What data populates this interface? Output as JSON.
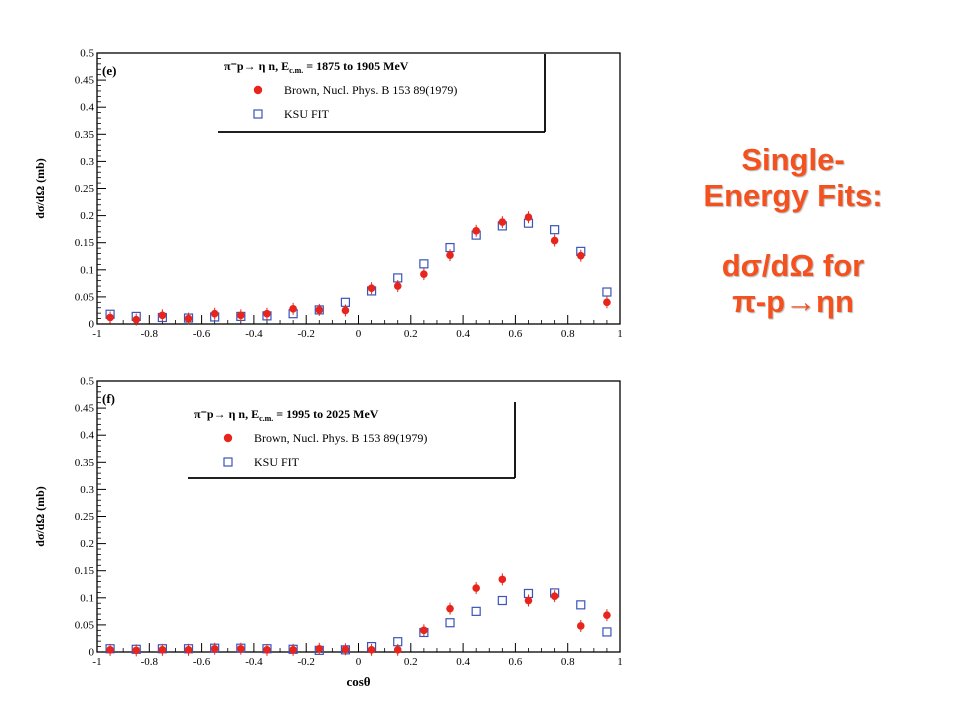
{
  "side_text": {
    "line1": "Single-",
    "line2": "Energy Fits:",
    "line3": "dσ/dΩ for",
    "line4_a": "π",
    "line4_sup": "-",
    "line4_b": "p→ηn"
  },
  "colors": {
    "brown": "#e8251c",
    "ksu": "#3a55b8",
    "accent": "#f4511e",
    "axis": "#000000"
  },
  "chart_data": [
    {
      "type": "scatter",
      "panel_label": "(e)",
      "legend": {
        "header_reaction": "π⁻p→ η n, E",
        "header_sub": "c.m.",
        "header_range": " = 1875 to 1905 MeV",
        "entries": [
          "Brown, Nucl. Phys. B 153 89(1979)",
          "KSU FIT"
        ]
      },
      "ylabel": "dσ/dΩ (mb)",
      "xlabel": "",
      "xlim": [
        -1,
        1
      ],
      "ylim": [
        0,
        0.5
      ],
      "xticks": [
        "-1",
        "-0.8",
        "-0.6",
        "-0.4",
        "-0.2",
        "0",
        "0.2",
        "0.4",
        "0.6",
        "0.8",
        "1"
      ],
      "yticks": [
        "0",
        "0.05",
        "0.1",
        "0.15",
        "0.2",
        "0.25",
        "0.3",
        "0.35",
        "0.4",
        "0.45",
        "0.5"
      ],
      "series": [
        {
          "name": "Brown, Nucl. Phys. B 153 89(1979)",
          "marker": "circle",
          "x": [
            -0.95,
            -0.85,
            -0.75,
            -0.65,
            -0.55,
            -0.45,
            -0.35,
            -0.25,
            -0.15,
            -0.05,
            0.05,
            0.15,
            0.25,
            0.35,
            0.45,
            0.55,
            0.65,
            0.75,
            0.85,
            0.95
          ],
          "y": [
            0.012,
            0.008,
            0.016,
            0.01,
            0.019,
            0.016,
            0.019,
            0.028,
            0.026,
            0.025,
            0.066,
            0.07,
            0.092,
            0.127,
            0.172,
            0.188,
            0.197,
            0.154,
            0.126,
            0.04
          ]
        },
        {
          "name": "KSU FIT",
          "marker": "open-square",
          "x": [
            -0.95,
            -0.85,
            -0.75,
            -0.65,
            -0.55,
            -0.45,
            -0.35,
            -0.25,
            -0.15,
            -0.05,
            0.05,
            0.15,
            0.25,
            0.35,
            0.45,
            0.55,
            0.65,
            0.75,
            0.85,
            0.95
          ],
          "y": [
            0.018,
            0.014,
            0.012,
            0.011,
            0.013,
            0.014,
            0.015,
            0.019,
            0.026,
            0.04,
            0.061,
            0.085,
            0.111,
            0.141,
            0.164,
            0.181,
            0.186,
            0.174,
            0.134,
            0.059
          ]
        }
      ]
    },
    {
      "type": "scatter",
      "panel_label": "(f)",
      "legend": {
        "header_reaction": "π⁻p→ η n, E",
        "header_sub": "c.m.",
        "header_range": " = 1995 to 2025 MeV",
        "entries": [
          "Brown, Nucl. Phys. B 153 89(1979)",
          "KSU FIT"
        ]
      },
      "ylabel": "dσ/dΩ (mb)",
      "xlabel": "cosθ",
      "xlim": [
        -1,
        1
      ],
      "ylim": [
        0,
        0.5
      ],
      "xticks": [
        "-1",
        "-0.8",
        "-0.6",
        "-0.4",
        "-0.2",
        "0",
        "0.2",
        "0.4",
        "0.6",
        "0.8",
        "1"
      ],
      "yticks": [
        "0",
        "0.05",
        "0.1",
        "0.15",
        "0.2",
        "0.25",
        "0.3",
        "0.35",
        "0.4",
        "0.45",
        "0.5"
      ],
      "series": [
        {
          "name": "Brown, Nucl. Phys. B 153 89(1979)",
          "marker": "circle",
          "x": [
            -0.95,
            -0.85,
            -0.75,
            -0.65,
            -0.55,
            -0.45,
            -0.35,
            -0.25,
            -0.15,
            -0.05,
            0.05,
            0.15,
            0.25,
            0.35,
            0.45,
            0.55,
            0.65,
            0.75,
            0.85,
            0.95
          ],
          "y": [
            0.004,
            0.003,
            0.004,
            0.004,
            0.006,
            0.006,
            0.004,
            0.004,
            0.006,
            0.005,
            0.004,
            0.004,
            0.04,
            0.08,
            0.118,
            0.134,
            0.095,
            0.103,
            0.048,
            0.068
          ]
        },
        {
          "name": "KSU FIT",
          "marker": "open-square",
          "x": [
            -0.95,
            -0.85,
            -0.75,
            -0.65,
            -0.55,
            -0.45,
            -0.35,
            -0.25,
            -0.15,
            -0.05,
            0.05,
            0.15,
            0.25,
            0.35,
            0.45,
            0.55,
            0.65,
            0.75,
            0.85,
            0.95
          ],
          "y": [
            0.006,
            0.005,
            0.006,
            0.006,
            0.007,
            0.007,
            0.006,
            0.005,
            0.003,
            0.004,
            0.01,
            0.019,
            0.036,
            0.054,
            0.075,
            0.095,
            0.108,
            0.109,
            0.087,
            0.037
          ]
        }
      ]
    }
  ]
}
